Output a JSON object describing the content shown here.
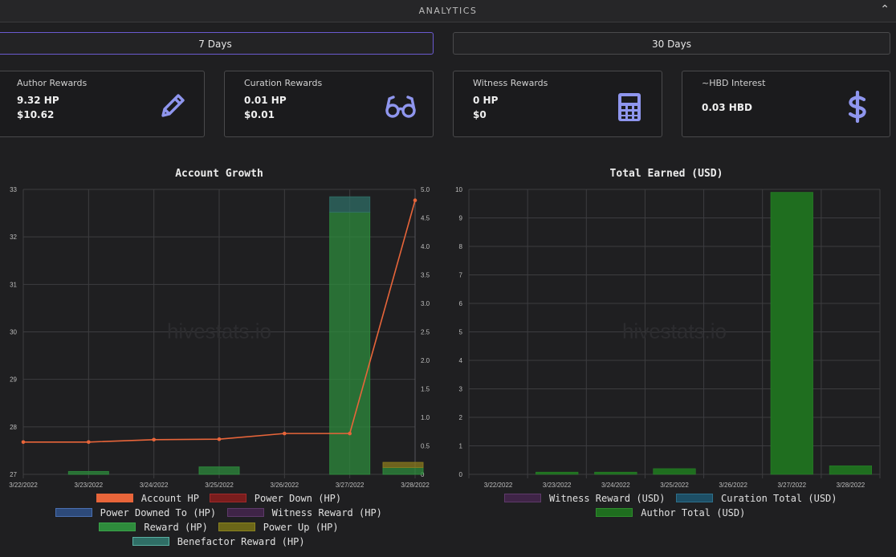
{
  "header": {
    "title": "ANALYTICS",
    "collapse_icon": "chevron-up-icon"
  },
  "range_buttons": [
    {
      "label": "7 Days",
      "active": true
    },
    {
      "label": "30 Days",
      "active": false
    }
  ],
  "cards": [
    {
      "label": "Author Rewards",
      "line1": "9.32 HP",
      "line2": "$10.62",
      "icon": "pencil-icon"
    },
    {
      "label": "Curation Rewards",
      "line1": "0.01 HP",
      "line2": "$0.01",
      "icon": "glasses-icon"
    },
    {
      "label": "Witness Rewards",
      "line1": "0 HP",
      "line2": "$0",
      "icon": "calculator-icon"
    },
    {
      "label": "~HBD Interest",
      "line1": "0.03 HBD",
      "line2": "",
      "icon": "dollar-icon"
    }
  ],
  "accent_color": "#7f86e6",
  "chart_data": [
    {
      "type": "bar",
      "title": "Account Growth",
      "watermark": "hivestats.io",
      "categories": [
        "3/22/2022",
        "3/23/2022",
        "3/24/2022",
        "3/25/2022",
        "3/26/2022",
        "3/27/2022",
        "3/28/2022"
      ],
      "y_left": {
        "min": 27,
        "max": 33,
        "ticks": [
          "27",
          "28",
          "29",
          "30",
          "31",
          "32",
          "33"
        ]
      },
      "y_right": {
        "min": 0,
        "max": 5,
        "ticks": [
          "0",
          "0.5",
          "1.0",
          "1.5",
          "2.0",
          "2.5",
          "3.0",
          "3.5",
          "4.0",
          "4.5",
          "5.0"
        ]
      },
      "line_series": {
        "name": "Account HP",
        "color": "#e8653a",
        "values": [
          27.68,
          27.68,
          27.73,
          27.74,
          27.86,
          27.86,
          32.77
        ]
      },
      "bar_series": [
        {
          "name": "Reward (HP)",
          "color": "#2e8b3c",
          "values": [
            0,
            0.05,
            0,
            0.13,
            0,
            4.6,
            0.12
          ]
        },
        {
          "name": "Power Up (HP)",
          "color": "#8a7a1e",
          "values": [
            0,
            0,
            0,
            0,
            0,
            0,
            0.09
          ]
        },
        {
          "name": "Benefactor Reward (HP)",
          "color": "#2f6e66",
          "values": [
            0,
            0,
            0,
            0,
            0,
            0.27,
            0
          ]
        }
      ],
      "legend": [
        {
          "name": "Account HP",
          "fill": "#e8653a",
          "border": "#e8653a"
        },
        {
          "name": "Power Down (HP)",
          "fill": "#7a1d1d",
          "border": "#a02a2a"
        },
        {
          "name": "Power Downed To (HP)",
          "fill": "#2d4a7a",
          "border": "#4a6fb0"
        },
        {
          "name": "Witness Reward (HP)",
          "fill": "#3f2447",
          "border": "#5e3a6a"
        },
        {
          "name": "Reward (HP)",
          "fill": "#2e8b3c",
          "border": "#3aa24a"
        },
        {
          "name": "Power Up (HP)",
          "fill": "#6b6618",
          "border": "#8a8320"
        },
        {
          "name": "Benefactor Reward (HP)",
          "fill": "#2f6e66",
          "border": "#5ab0a3"
        }
      ],
      "grid": true
    },
    {
      "type": "bar",
      "title": "Total Earned (USD)",
      "watermark": "hivestats.io",
      "categories": [
        "3/22/2022",
        "3/23/2022",
        "3/24/2022",
        "3/25/2022",
        "3/26/2022",
        "3/27/2022",
        "3/28/2022"
      ],
      "y_left": {
        "min": 0,
        "max": 10,
        "ticks": [
          "0",
          "1",
          "2",
          "3",
          "4",
          "5",
          "6",
          "7",
          "8",
          "9",
          "10"
        ]
      },
      "bar_series": [
        {
          "name": "Author Total (USD)",
          "color": "#1f6e1f",
          "values": [
            0,
            0.08,
            0.08,
            0.2,
            0,
            9.9,
            0.3
          ]
        }
      ],
      "legend": [
        {
          "name": "Witness Reward (USD)",
          "fill": "#3f2447",
          "border": "#5e3a6a"
        },
        {
          "name": "Curation Total (USD)",
          "fill": "#1d4f66",
          "border": "#2d6f8a"
        },
        {
          "name": "Author Total (USD)",
          "fill": "#1f6e1f",
          "border": "#2e8b2e"
        }
      ],
      "grid": true
    }
  ]
}
